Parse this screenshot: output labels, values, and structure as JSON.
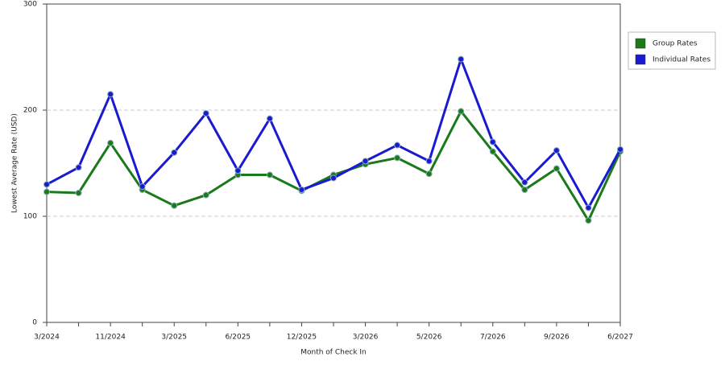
{
  "chart_data": {
    "type": "line",
    "x_label": "Month of Check In",
    "y_label": "Lowest Average Rate (USD)",
    "categories": [
      "3/2024",
      null,
      "11/2024",
      null,
      "3/2025",
      null,
      "6/2025",
      null,
      "12/2025",
      null,
      "3/2026",
      null,
      "5/2026",
      null,
      "7/2026",
      null,
      "9/2026",
      null,
      "6/2027"
    ],
    "series": [
      {
        "name": "Group Rates",
        "color": "#1a7a1a",
        "values": [
          123,
          122,
          169,
          125,
          110,
          120,
          139,
          139,
          124,
          139,
          149,
          155,
          140,
          199,
          161,
          125,
          145,
          96,
          161
        ]
      },
      {
        "name": "Individual Rates",
        "color": "#1a1ad0",
        "values": [
          130,
          146,
          215,
          128,
          160,
          197,
          143,
          192,
          125,
          136,
          152,
          167,
          152,
          248,
          170,
          132,
          162,
          108,
          163
        ]
      }
    ],
    "ylim": [
      0,
      300
    ],
    "yticks": [
      0,
      100,
      200,
      300
    ],
    "grid": true,
    "legend": "right"
  }
}
